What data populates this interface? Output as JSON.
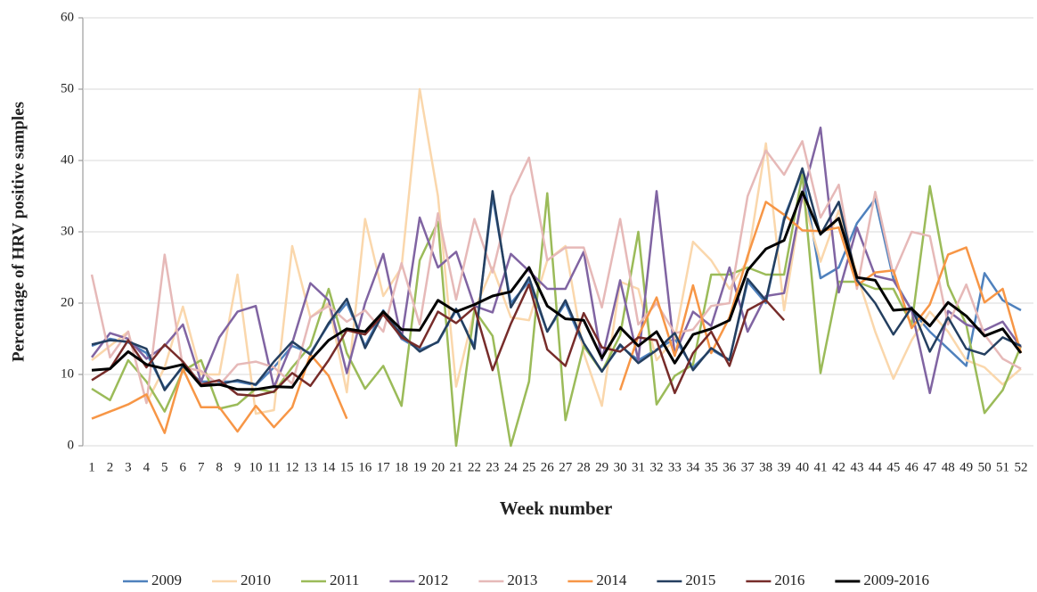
{
  "chart_data": {
    "type": "line",
    "y_label": "Percentage of HRV positive samples",
    "x_label": "Week number",
    "categories": [
      "1",
      "2",
      "3",
      "4",
      "5",
      "6",
      "7",
      "8",
      "9",
      "10",
      "11",
      "12",
      "13",
      "14",
      "15",
      "16",
      "17",
      "18",
      "19",
      "20",
      "21",
      "22",
      "23",
      "24",
      "25",
      "26",
      "27",
      "28",
      "29",
      "30",
      "31",
      "32",
      "33",
      "34",
      "35",
      "36",
      "37",
      "38",
      "39",
      "40",
      "41",
      "42",
      "43",
      "44",
      "45",
      "46",
      "47",
      "48",
      "49",
      "50",
      "51",
      "52"
    ],
    "ylim": [
      0,
      60
    ],
    "yticks": [
      0,
      10,
      20,
      30,
      40,
      50,
      60
    ],
    "grid": true,
    "legend": "bottom",
    "series": [
      {
        "name": "2009",
        "color": "#4f81bd",
        "values": [
          14,
          15,
          14.5,
          13,
          8,
          11,
          9,
          9,
          9,
          8.5,
          11,
          14,
          13,
          17,
          20,
          14,
          19,
          15,
          13.5,
          14.5,
          19,
          14,
          35,
          20,
          23,
          16,
          20,
          14,
          10.5,
          14,
          12,
          13.5,
          15,
          11,
          13.5,
          12,
          23,
          20,
          32,
          38.5,
          23.5,
          25,
          31.2,
          34.6,
          23.4,
          19,
          16,
          13.6,
          11.2,
          24.2,
          20.4,
          19
        ]
      },
      {
        "name": "2010",
        "color": "#fad7ac",
        "values": [
          12,
          14,
          16,
          6,
          11,
          19.5,
          10,
          10,
          24,
          4.5,
          5,
          28,
          18,
          20,
          7.5,
          31.8,
          21,
          25,
          50,
          35,
          8.3,
          19,
          25,
          18,
          17.6,
          26,
          28,
          13,
          5.6,
          23,
          22,
          12,
          15,
          28.6,
          26,
          22,
          26,
          42.4,
          19,
          35,
          25.8,
          33,
          24,
          16,
          9.4,
          14.8,
          18.8,
          16,
          12,
          11,
          8.6,
          10.8
        ]
      },
      {
        "name": "2011",
        "color": "#9bbb59",
        "values": [
          8,
          6.4,
          12,
          9,
          4.8,
          10.5,
          12,
          5.2,
          5.8,
          8,
          7.5,
          11,
          14,
          22,
          13,
          8,
          11.2,
          5.6,
          26,
          31.4,
          0,
          19,
          15.4,
          0,
          9,
          35.4,
          3.6,
          14,
          10.4,
          15.5,
          30,
          5.8,
          9.8,
          11.4,
          24,
          24,
          25,
          24,
          24,
          38,
          10.2,
          23,
          23,
          22,
          22,
          17,
          36.4,
          22.5,
          17,
          4.6,
          7.8,
          14
        ]
      },
      {
        "name": "2012",
        "color": "#8064a2",
        "values": [
          12.4,
          15.8,
          15,
          12.2,
          14,
          17,
          9,
          15.2,
          18.8,
          19.6,
          8.2,
          14.4,
          22.8,
          20.4,
          10.2,
          20,
          26.9,
          15,
          32,
          25,
          27.2,
          19.6,
          18.7,
          26.9,
          24.5,
          22,
          22,
          27.2,
          12,
          23.2,
          12,
          35.7,
          12.8,
          18.8,
          16.8,
          25,
          16,
          21,
          21.4,
          35,
          44.6,
          21.5,
          30.6,
          23.8,
          23.2,
          19,
          7.4,
          18.9,
          17,
          16.2,
          17.4,
          13.8
        ]
      },
      {
        "name": "2013",
        "color": "#e6b9b8",
        "values": [
          24,
          12.4,
          16,
          6,
          26.8,
          11,
          10.5,
          8.5,
          11.4,
          11.8,
          11,
          8.7,
          18,
          19.6,
          17.4,
          19,
          16,
          25.6,
          17,
          32.6,
          20.5,
          31.8,
          24.3,
          35,
          40.4,
          26,
          27.8,
          27.8,
          19.4,
          31.8,
          17,
          20,
          15.8,
          16.3,
          19.6,
          20,
          35,
          41.4,
          38,
          42.7,
          32,
          36.6,
          22,
          35.6,
          24,
          30,
          29.4,
          17,
          22.6,
          15.6,
          12.2,
          10.8
        ]
      },
      {
        "name": "2014",
        "color": "#f79646",
        "values": [
          3.8,
          4.8,
          5.8,
          7.2,
          1.8,
          10.8,
          5.4,
          5.4,
          2,
          5.6,
          2.6,
          5.4,
          12.8,
          9.8,
          3.8,
          null,
          null,
          null,
          null,
          null,
          null,
          null,
          null,
          null,
          null,
          null,
          null,
          null,
          null,
          7.8,
          15.4,
          20.8,
          12.6,
          22.5,
          13,
          18,
          26.6,
          34.2,
          32.4,
          30.2,
          30.1,
          30.6,
          22.5,
          24.3,
          24.6,
          16.5,
          19.8,
          26.8,
          27.8,
          20.1,
          22,
          13
        ]
      },
      {
        "name": "2015",
        "color": "#243f60",
        "values": [
          14.2,
          14.8,
          14.6,
          13.6,
          7.8,
          11.2,
          8.6,
          8.6,
          9.2,
          8.6,
          11.8,
          14.6,
          12.8,
          17.2,
          20.6,
          13.7,
          18.6,
          15.6,
          13.2,
          14.6,
          19.2,
          13.6,
          35.7,
          19.4,
          23.6,
          16,
          20.4,
          14.4,
          10.4,
          14.2,
          11.6,
          13.4,
          15.8,
          10.6,
          13.7,
          12,
          23.4,
          20.4,
          31.6,
          38.9,
          29.6,
          34.2,
          23.2,
          20,
          15.6,
          19.4,
          13.2,
          18,
          13.6,
          12.8,
          15.2,
          14
        ]
      },
      {
        "name": "2016",
        "color": "#772c2a",
        "values": [
          9.2,
          10.8,
          14.8,
          11,
          14.2,
          11.8,
          8.6,
          9.2,
          7.2,
          7,
          7.6,
          10.2,
          8.4,
          12,
          16.2,
          15.6,
          18.4,
          15.2,
          13.8,
          18.8,
          17.2,
          19.4,
          10.6,
          17.1,
          22.6,
          13.5,
          11.2,
          18.6,
          13.8,
          13.2,
          15.2,
          14.8,
          7.4,
          13,
          16,
          11.2,
          19,
          20.4,
          17.6,
          null,
          null,
          null,
          null,
          null,
          null,
          null,
          null,
          null,
          null,
          null,
          null,
          null
        ]
      },
      {
        "name": "2009-2016",
        "color": "#000000",
        "values": [
          10.6,
          10.8,
          13.2,
          11.4,
          10.8,
          11.4,
          8.4,
          8.6,
          7.9,
          7.9,
          8.3,
          8.2,
          12,
          14.8,
          16.4,
          16,
          18.8,
          16.3,
          16.2,
          20.4,
          18.8,
          19.8,
          21,
          21.6,
          25,
          19.6,
          17.8,
          17.6,
          12.3,
          16.6,
          14,
          16,
          11.6,
          15.6,
          16.4,
          17.6,
          24.6,
          27.6,
          28.8,
          35.6,
          29.7,
          31.9,
          23.6,
          23.2,
          19,
          19.2,
          16.8,
          20.1,
          18.2,
          15.4,
          16.4,
          13
        ]
      }
    ]
  }
}
